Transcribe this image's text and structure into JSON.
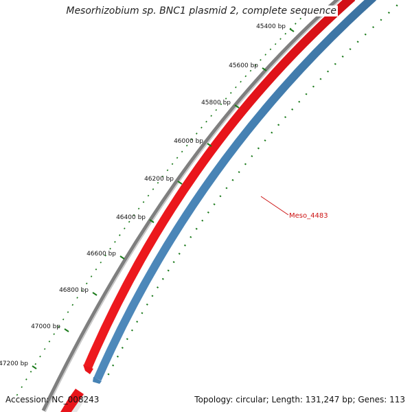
{
  "title": "Mesorhizobium sp. BNC1 plasmid 2, complete sequence",
  "accession": "Accession: NC_008243",
  "summary": "Topology: circular; Length: 131,247 bp; Genes: 113",
  "ticks": [
    {
      "label": "45400 bp"
    },
    {
      "label": "45600 bp"
    },
    {
      "label": "45800 bp"
    },
    {
      "label": "46000 bp"
    },
    {
      "label": "46200 bp"
    },
    {
      "label": "46400 bp"
    },
    {
      "label": "46600 bp"
    },
    {
      "label": "46800 bp"
    },
    {
      "label": "47000 bp"
    },
    {
      "label": "47200 bp"
    }
  ],
  "feature_label": "Meso_4483",
  "colors": {
    "forward_strand": "#e8141a",
    "reverse_strand": "#4682b4",
    "backbone": "#808080",
    "tick": "#1a7a1a",
    "feature_label": "#cc1111"
  }
}
